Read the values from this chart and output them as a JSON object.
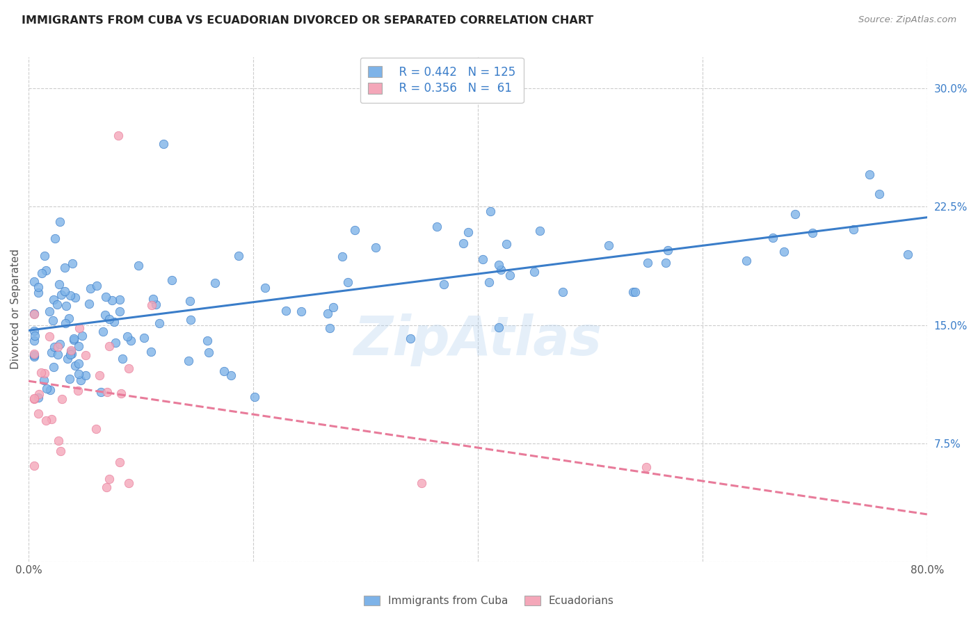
{
  "title": "IMMIGRANTS FROM CUBA VS ECUADORIAN DIVORCED OR SEPARATED CORRELATION CHART",
  "source": "Source: ZipAtlas.com",
  "ylabel": "Divorced or Separated",
  "xlim": [
    0.0,
    0.8
  ],
  "ylim": [
    0.0,
    0.32
  ],
  "yticks_right": [
    0.0,
    0.075,
    0.15,
    0.225,
    0.3
  ],
  "ytick_labels_right": [
    "",
    "7.5%",
    "15.0%",
    "22.5%",
    "30.0%"
  ],
  "watermark": "ZipAtlas",
  "legend_blue_r": "R = 0.442",
  "legend_blue_n": "N = 125",
  "legend_pink_r": "R = 0.356",
  "legend_pink_n": "N =  61",
  "blue_color": "#7EB3E8",
  "pink_color": "#F4A7B9",
  "blue_line_color": "#3A7DC9",
  "pink_line_color": "#E87B9A",
  "title_color": "#222222",
  "source_color": "#888888",
  "right_tick_color": "#3A7DC9",
  "grid_color": "#CCCCCC",
  "background_color": "#FFFFFF",
  "legend_bottom_labels": [
    "Immigrants from Cuba",
    "Ecuadorians"
  ]
}
